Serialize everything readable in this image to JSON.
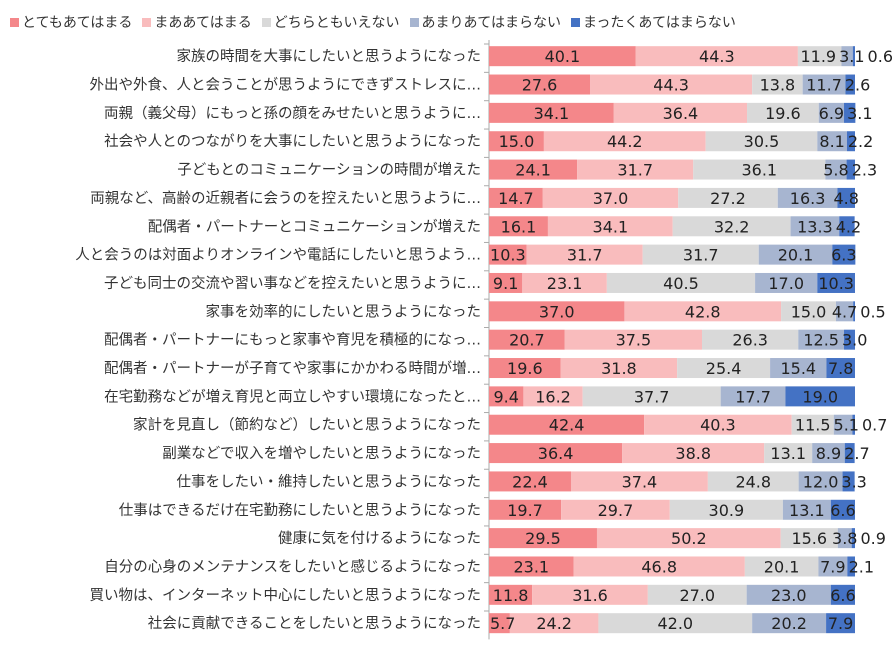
{
  "chart_data": {
    "type": "bar",
    "orientation": "horizontal",
    "stacked": true,
    "xlim": [
      0,
      100
    ],
    "legend_position": "top",
    "series": [
      {
        "name": "とてもあてはまる",
        "color": "#f4878a",
        "values": [
          40.1,
          27.6,
          34.1,
          15.0,
          24.1,
          14.7,
          16.1,
          10.3,
          9.1,
          37.0,
          20.7,
          19.6,
          9.4,
          42.4,
          36.4,
          22.4,
          19.7,
          29.5,
          23.1,
          11.8,
          5.7
        ]
      },
      {
        "name": "まああてはまる",
        "color": "#f9bcbd",
        "values": [
          44.3,
          44.3,
          36.4,
          44.2,
          31.7,
          37.0,
          34.1,
          31.7,
          23.1,
          42.8,
          37.5,
          31.8,
          16.2,
          40.3,
          38.8,
          37.4,
          29.7,
          50.2,
          46.8,
          31.6,
          24.2
        ]
      },
      {
        "name": "どちらともいえない",
        "color": "#d9d9d9",
        "values": [
          11.9,
          13.8,
          19.6,
          30.5,
          36.1,
          27.2,
          32.2,
          31.7,
          40.5,
          15.0,
          26.3,
          25.4,
          37.7,
          11.5,
          13.1,
          24.8,
          30.9,
          15.6,
          20.1,
          27.0,
          42.0
        ]
      },
      {
        "name": "あまりあてはまらない",
        "color": "#a7b5d0",
        "values": [
          3.1,
          11.7,
          6.9,
          8.1,
          5.8,
          16.3,
          13.3,
          20.1,
          17.0,
          4.7,
          12.5,
          15.4,
          17.7,
          5.1,
          8.9,
          12.0,
          13.1,
          3.8,
          7.9,
          23.0,
          20.2
        ]
      },
      {
        "name": "まったくあてはまらない",
        "color": "#4472c4",
        "values": [
          0.6,
          2.6,
          3.1,
          2.2,
          2.3,
          4.8,
          4.2,
          6.3,
          10.3,
          0.5,
          3.0,
          7.8,
          19.0,
          0.7,
          2.7,
          3.3,
          6.6,
          0.9,
          2.1,
          6.6,
          7.9
        ]
      }
    ],
    "categories": [
      "家族の時間を大事にしたいと思うようになった",
      "外出や外食、人と会うことが思うようにできずストレスに…",
      "両親（義父母）にもっと孫の顔をみせたいと思うように…",
      "社会や人とのつながりを大事にしたいと思うようになった",
      "子どもとのコミュニケーションの時間が増えた",
      "両親など、高齢の近親者に会うのを控えたいと思うように…",
      "配偶者・パートナーとコミュニケーションが増えた",
      "人と会うのは対面よりオンラインや電話にしたいと思うよう…",
      "子ども同士の交流や習い事などを控えたいと思うように…",
      "家事を効率的にしたいと思うようになった",
      "配偶者・パートナーにもっと家事や育児を積極的になっ…",
      "配偶者・パートナーが子育てや家事にかかわる時間が増…",
      "在宅勤務などが増え育児と両立しやすい環境になったと…",
      "家計を見直し（節約など）したいと思うようになった",
      "副業などで収入を増やしたいと思うようになった",
      "仕事をしたい・維持したいと思うようになった",
      "仕事はできるだけ在宅勤務にしたいと思うようになった",
      "健康に気を付けるようになった",
      "自分の心身のメンテナンスをしたいと感じるようになった",
      "買い物は、インターネット中心にしたいと思うようになった",
      "社会に貢献できることをしたいと思うようになった"
    ]
  }
}
